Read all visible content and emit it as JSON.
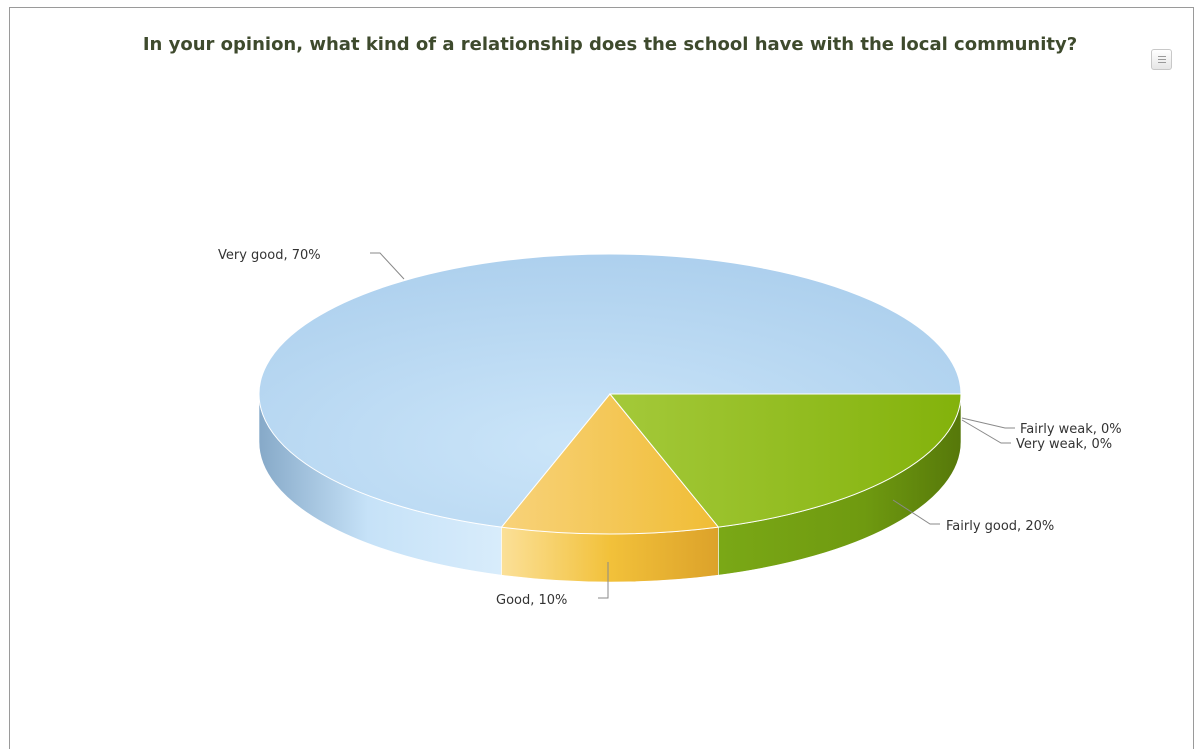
{
  "chart_data": {
    "type": "pie",
    "title": "In your opinion, what kind of a relationship does the school have with the local community?",
    "slices": [
      {
        "name": "Very good",
        "value": 70,
        "label": "Very good, 70%",
        "color": "#b5d6f0"
      },
      {
        "name": "Good",
        "value": 10,
        "label": "Good, 10%",
        "color": "#f5c542"
      },
      {
        "name": "Fairly good",
        "value": 20,
        "label": "Fairly good, 20%",
        "color": "#8fbc1f"
      },
      {
        "name": "Fairly weak",
        "value": 0,
        "label": "Fairly weak, 0%",
        "color": "#e05a3a"
      },
      {
        "name": "Very weak",
        "value": 0,
        "label": "Very weak, 0%",
        "color": "#9a4fb0"
      }
    ],
    "legend": "none",
    "three_d": true
  },
  "icons": {
    "menu": "context-menu-icon"
  }
}
